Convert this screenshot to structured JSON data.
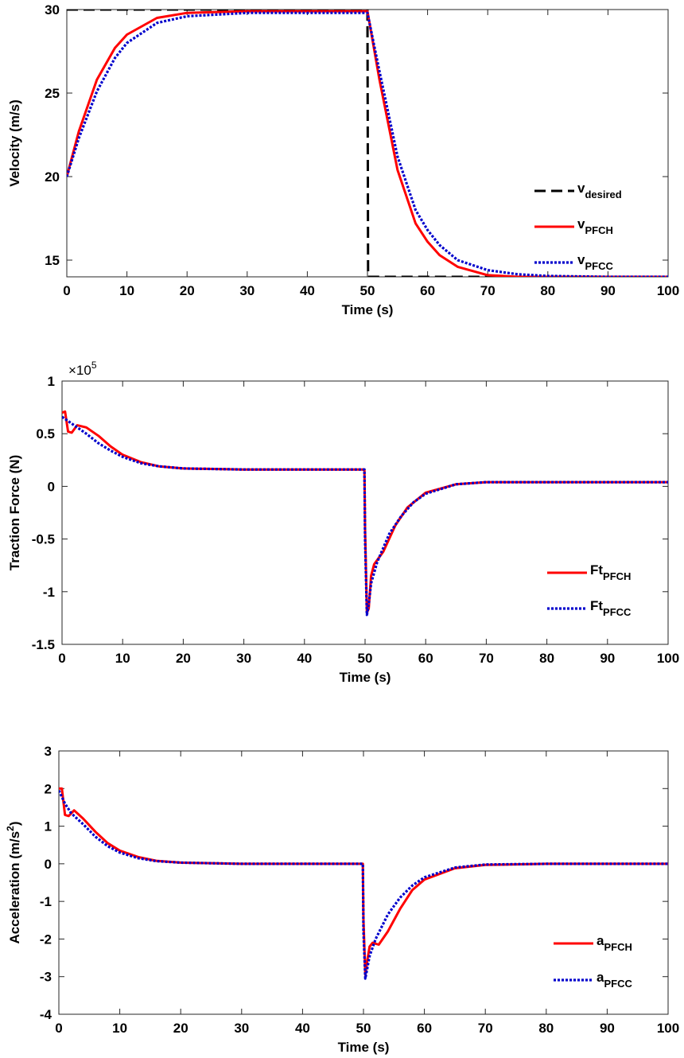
{
  "chart_data": [
    {
      "type": "line",
      "xlabel": "Time (s)",
      "ylabel": "Velocity (m/s)",
      "xlim": [
        0,
        100
      ],
      "ylim": [
        14,
        30
      ],
      "xticks": [
        "0",
        "10",
        "20",
        "30",
        "40",
        "50",
        "60",
        "70",
        "80",
        "90",
        "100"
      ],
      "yticks": [
        "15",
        "20",
        "25",
        "30"
      ],
      "grid": false,
      "legend_position": "bottom-right",
      "series": [
        {
          "name": "v",
          "subscript": "desired",
          "color": "#000000",
          "style": "dashed",
          "x": [
            0,
            49.9,
            50,
            50.1,
            100
          ],
          "y": [
            30,
            30,
            30,
            14,
            14
          ]
        },
        {
          "name": "v",
          "subscript": "PFCH",
          "color": "#ff0000",
          "style": "solid",
          "x": [
            0,
            2,
            5,
            8,
            10,
            15,
            20,
            30,
            40,
            50,
            52,
            55,
            58,
            60,
            62,
            65,
            70,
            75,
            80,
            90,
            100
          ],
          "y": [
            20,
            22.7,
            25.8,
            27.7,
            28.5,
            29.5,
            29.8,
            29.9,
            29.9,
            29.9,
            25.8,
            20.4,
            17.2,
            16.1,
            15.3,
            14.6,
            14.1,
            14.0,
            14.0,
            14.0,
            14.0
          ]
        },
        {
          "name": "v",
          "subscript": "PFCC",
          "color": "#0000cc",
          "style": "dotted",
          "x": [
            0,
            2,
            5,
            8,
            10,
            15,
            20,
            30,
            40,
            50,
            52,
            55,
            58,
            60,
            62,
            65,
            70,
            75,
            80,
            90,
            100
          ],
          "y": [
            20,
            22.3,
            25.1,
            27.1,
            28.0,
            29.2,
            29.6,
            29.8,
            29.8,
            29.8,
            26.3,
            21.2,
            18.0,
            16.8,
            15.9,
            15.0,
            14.4,
            14.15,
            14.05,
            14.0,
            14.0
          ]
        }
      ]
    },
    {
      "type": "line",
      "xlabel": "Time (s)",
      "ylabel": "Traction Force (N)",
      "exponent_label": "×10",
      "exponent_power": "5",
      "xlim": [
        0,
        100
      ],
      "ylim": [
        -1.5,
        1
      ],
      "xticks": [
        "0",
        "10",
        "20",
        "30",
        "40",
        "50",
        "60",
        "70",
        "80",
        "90",
        "100"
      ],
      "yticks": [
        "1",
        "0.5",
        "0",
        "-0.5",
        "-1",
        "-1.5"
      ],
      "grid": false,
      "legend_position": "bottom-right",
      "series": [
        {
          "name": "Ft",
          "subscript": "PFCH",
          "color": "#ff0000",
          "style": "solid",
          "x": [
            0,
            0.5,
            1,
            1.6,
            2.5,
            4,
            6,
            8,
            10,
            13,
            16,
            20,
            30,
            40,
            49.9,
            50,
            50.3,
            50.6,
            51,
            51.5,
            53,
            55,
            57,
            60,
            65,
            70,
            80,
            90,
            100
          ],
          "y": [
            0.7,
            0.71,
            0.52,
            0.51,
            0.58,
            0.56,
            0.48,
            0.38,
            0.3,
            0.23,
            0.19,
            0.17,
            0.16,
            0.16,
            0.16,
            -0.4,
            -1.2,
            -1.16,
            -0.85,
            -0.74,
            -0.62,
            -0.37,
            -0.2,
            -0.06,
            0.02,
            0.04,
            0.04,
            0.04,
            0.04
          ]
        },
        {
          "name": "Ft",
          "subscript": "PFCC",
          "color": "#0000cc",
          "style": "dotted",
          "x": [
            0,
            1,
            2,
            4,
            6,
            8,
            10,
            13,
            16,
            20,
            30,
            40,
            49.9,
            50,
            50.3,
            50.6,
            51,
            52,
            54,
            56,
            58,
            60,
            65,
            70,
            80,
            90,
            100
          ],
          "y": [
            0.66,
            0.62,
            0.58,
            0.5,
            0.41,
            0.34,
            0.28,
            0.22,
            0.19,
            0.17,
            0.16,
            0.16,
            0.16,
            -0.5,
            -1.22,
            -1.12,
            -0.92,
            -0.72,
            -0.45,
            -0.28,
            -0.15,
            -0.07,
            0.02,
            0.04,
            0.04,
            0.04,
            0.04
          ]
        }
      ]
    },
    {
      "type": "line",
      "xlabel": "Time (s)",
      "ylabel": "Acceleration (m/s",
      "ylabel_superscript": "2",
      "ylabel_close": ")",
      "xlim": [
        0,
        100
      ],
      "ylim": [
        -4,
        3
      ],
      "xticks": [
        "0",
        "10",
        "20",
        "30",
        "40",
        "50",
        "60",
        "70",
        "80",
        "90",
        "100"
      ],
      "yticks": [
        "3",
        "2",
        "1",
        "0",
        "-1",
        "-2",
        "-3",
        "-4"
      ],
      "grid": false,
      "legend_position": "bottom-right",
      "series": [
        {
          "name": "a",
          "subscript": "PFCH",
          "color": "#ff0000",
          "style": "solid",
          "x": [
            0,
            0.5,
            1,
            1.6,
            2.5,
            4,
            6,
            8,
            10,
            13,
            16,
            20,
            30,
            40,
            49.9,
            50,
            50.3,
            50.6,
            51,
            51.5,
            52.5,
            54,
            56,
            58,
            60,
            65,
            70,
            80,
            90,
            100
          ],
          "y": [
            2.0,
            2.0,
            1.3,
            1.27,
            1.42,
            1.2,
            0.85,
            0.55,
            0.35,
            0.18,
            0.08,
            0.03,
            0.0,
            0.0,
            0.0,
            -1.5,
            -2.95,
            -2.6,
            -2.2,
            -2.1,
            -2.15,
            -1.8,
            -1.2,
            -0.7,
            -0.42,
            -0.12,
            -0.03,
            0.0,
            0.0,
            0.0
          ]
        },
        {
          "name": "a",
          "subscript": "PFCC",
          "color": "#0000cc",
          "style": "dotted",
          "x": [
            0,
            1,
            2,
            4,
            6,
            8,
            10,
            13,
            16,
            20,
            30,
            40,
            49.9,
            50,
            50.3,
            50.6,
            51,
            52,
            54,
            56,
            58,
            60,
            65,
            70,
            80,
            90,
            100
          ],
          "y": [
            1.95,
            1.6,
            1.35,
            1.05,
            0.72,
            0.47,
            0.3,
            0.15,
            0.07,
            0.03,
            0.0,
            0.0,
            0.0,
            -1.8,
            -3.05,
            -2.8,
            -2.45,
            -2.0,
            -1.35,
            -0.9,
            -0.58,
            -0.36,
            -0.1,
            -0.02,
            0.0,
            0.0,
            0.0
          ]
        }
      ]
    }
  ]
}
